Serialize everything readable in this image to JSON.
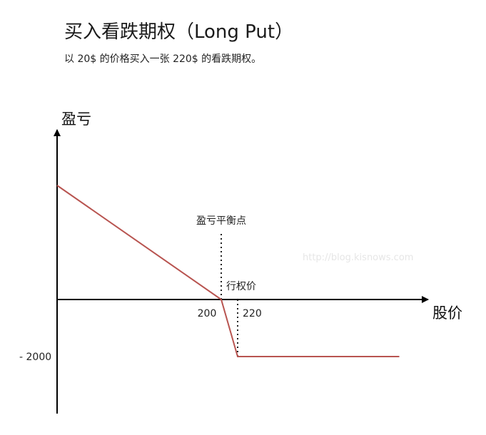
{
  "header": {
    "title": "买入看跌期权（Long Put）",
    "subtitle": "以 20$ 的价格买入一张 220$ 的看跌期权。"
  },
  "watermark": "http://blog.kisnows.com",
  "chart_data": {
    "type": "line",
    "title": "买入看跌期权（Long Put）",
    "xlabel": "股价",
    "ylabel": "盈亏",
    "x": [
      0,
      200,
      220,
      400
    ],
    "y": [
      4000,
      0,
      -2000,
      -2000
    ],
    "xlim": [
      0,
      520
    ],
    "ylim": [
      -5500,
      5500
    ],
    "series": [
      {
        "values": [
          4000,
          0,
          -2000,
          -2000
        ],
        "color": "#b85450"
      }
    ],
    "x_tick_labels": {
      "t200": "200",
      "t220": "220"
    },
    "y_tick_labels": {
      "tneg2000": "- 2000"
    },
    "annotations": {
      "breakeven": {
        "text": "盈亏平衡点",
        "x": 200
      },
      "strike": {
        "text": "行权价",
        "x": 220
      }
    },
    "grid": false,
    "legend": "none"
  }
}
